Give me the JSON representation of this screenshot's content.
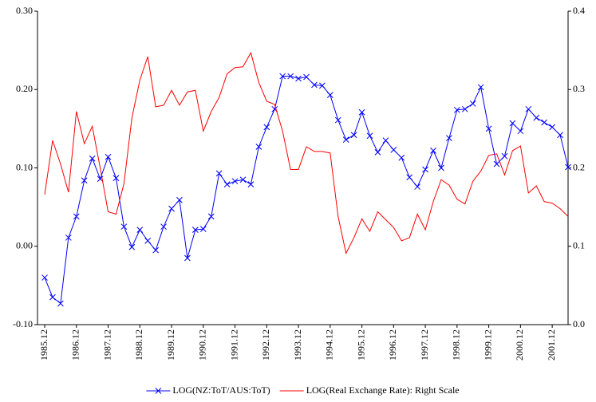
{
  "chart_data": {
    "type": "line",
    "categories": [
      "1985.12",
      null,
      null,
      null,
      "1986.12",
      null,
      null,
      null,
      "1987.12",
      null,
      null,
      null,
      "1988.12",
      null,
      null,
      null,
      "1989.12",
      null,
      null,
      null,
      "1990.12",
      null,
      null,
      null,
      "1991.12",
      null,
      null,
      null,
      "1992.12",
      null,
      null,
      null,
      "1993.12",
      null,
      null,
      null,
      "1994.12",
      null,
      null,
      null,
      "1995.12",
      null,
      null,
      null,
      "1996.12",
      null,
      null,
      null,
      "1997.12",
      null,
      null,
      null,
      "1998.12",
      null,
      null,
      null,
      "1999.12",
      null,
      null,
      null,
      "2000.12",
      null,
      null,
      null,
      "2001.12",
      null,
      null
    ],
    "series": [
      {
        "name": "LOG(NZ:ToT/AUS:ToT)",
        "color": "#0000ff",
        "marker": "x",
        "values": [
          -0.04,
          -0.065,
          -0.073,
          0.011,
          0.038,
          0.084,
          0.112,
          0.086,
          0.114,
          0.087,
          0.025,
          -0.001,
          0.021,
          0.007,
          -0.005,
          0.025,
          0.048,
          0.059,
          -0.015,
          0.021,
          0.022,
          0.038,
          0.093,
          0.079,
          0.083,
          0.085,
          0.079,
          0.127,
          0.152,
          0.175,
          0.217,
          0.217,
          0.214,
          0.216,
          0.206,
          0.205,
          0.193,
          0.161,
          0.136,
          0.142,
          0.171,
          0.141,
          0.12,
          0.135,
          0.123,
          0.113,
          0.088,
          0.076,
          0.098,
          0.122,
          0.1,
          0.138,
          0.174,
          0.175,
          0.182,
          0.203,
          0.15,
          0.105,
          0.115,
          0.157,
          0.147,
          0.175,
          0.164,
          0.158,
          0.152,
          0.142,
          0.101
        ]
      },
      {
        "name": "LOG(Real Exchange Rate): Right Scale",
        "color": "#ff0000",
        "axis": "y2",
        "values": [
          0.166,
          0.235,
          0.205,
          0.169,
          0.272,
          0.231,
          0.253,
          0.2,
          0.144,
          0.141,
          0.18,
          0.264,
          0.312,
          0.342,
          0.278,
          0.28,
          0.299,
          0.28,
          0.297,
          0.299,
          0.247,
          0.272,
          0.29,
          0.32,
          0.328,
          0.329,
          0.347,
          0.309,
          0.285,
          0.281,
          0.247,
          0.198,
          0.198,
          0.227,
          0.221,
          0.221,
          0.219,
          0.138,
          0.091,
          0.111,
          0.135,
          0.119,
          0.144,
          0.134,
          0.124,
          0.107,
          0.111,
          0.141,
          0.121,
          0.157,
          0.185,
          0.178,
          0.16,
          0.154,
          0.183,
          0.196,
          0.216,
          0.218,
          0.191,
          0.222,
          0.228,
          0.168,
          0.177,
          0.157,
          0.155,
          0.148,
          0.138
        ]
      }
    ],
    "ylim": [
      -0.1,
      0.3
    ],
    "yticks": [
      {
        "value": -0.1,
        "label": "-0.10"
      },
      {
        "value": 0,
        "label": "0.00"
      },
      {
        "value": 0.1,
        "label": "0.10"
      },
      {
        "value": 0.2,
        "label": "0.20"
      },
      {
        "value": 0.3,
        "label": "0.30"
      }
    ],
    "y2lim": [
      0,
      0.4
    ],
    "y2ticks": [
      {
        "value": 0,
        "label": "0.0"
      },
      0.1,
      0.2,
      0.3,
      0.4
    ],
    "grid": false,
    "legend": "bottom"
  }
}
